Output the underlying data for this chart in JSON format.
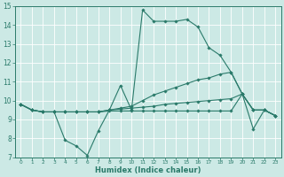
{
  "xlabel": "Humidex (Indice chaleur)",
  "xlim": [
    -0.5,
    23.5
  ],
  "ylim": [
    7,
    15
  ],
  "yticks": [
    7,
    8,
    9,
    10,
    11,
    12,
    13,
    14,
    15
  ],
  "xticks": [
    0,
    1,
    2,
    3,
    4,
    5,
    6,
    7,
    8,
    9,
    10,
    11,
    12,
    13,
    14,
    15,
    16,
    17,
    18,
    19,
    20,
    21,
    22,
    23
  ],
  "bg_color": "#cce9e5",
  "line_color": "#2a7a6a",
  "grid_color": "#ffffff",
  "figsize": [
    3.2,
    2.0
  ],
  "dpi": 100,
  "lines": [
    {
      "x": [
        0,
        1,
        2,
        3,
        4,
        5,
        6,
        7,
        8,
        9,
        10,
        11,
        12,
        13,
        14,
        15,
        16,
        17,
        18,
        19,
        20,
        21,
        22,
        23
      ],
      "y": [
        9.8,
        9.5,
        9.4,
        9.4,
        7.9,
        7.6,
        7.1,
        8.4,
        9.5,
        10.8,
        9.5,
        14.8,
        14.2,
        14.2,
        14.2,
        14.3,
        13.9,
        12.8,
        12.4,
        11.5,
        10.35,
        8.5,
        9.5,
        9.2
      ]
    },
    {
      "x": [
        0,
        1,
        2,
        3,
        4,
        5,
        6,
        7,
        8,
        9,
        10,
        11,
        12,
        13,
        14,
        15,
        16,
        17,
        18,
        19,
        20,
        21,
        22,
        23
      ],
      "y": [
        9.8,
        9.5,
        9.4,
        9.4,
        9.4,
        9.4,
        9.4,
        9.4,
        9.5,
        9.6,
        9.7,
        10.0,
        10.3,
        10.5,
        10.7,
        10.9,
        11.1,
        11.2,
        11.4,
        11.5,
        10.35,
        9.5,
        9.5,
        9.2
      ]
    },
    {
      "x": [
        0,
        1,
        2,
        3,
        4,
        5,
        6,
        7,
        8,
        9,
        10,
        11,
        12,
        13,
        14,
        15,
        16,
        17,
        18,
        19,
        20,
        21,
        22,
        23
      ],
      "y": [
        9.8,
        9.5,
        9.4,
        9.4,
        9.4,
        9.4,
        9.4,
        9.4,
        9.5,
        9.55,
        9.6,
        9.65,
        9.7,
        9.8,
        9.85,
        9.9,
        9.95,
        10.0,
        10.05,
        10.1,
        10.35,
        9.5,
        9.5,
        9.2
      ]
    },
    {
      "x": [
        0,
        1,
        2,
        3,
        4,
        5,
        6,
        7,
        8,
        9,
        10,
        11,
        12,
        13,
        14,
        15,
        16,
        17,
        18,
        19,
        20,
        21,
        22,
        23
      ],
      "y": [
        9.8,
        9.5,
        9.4,
        9.4,
        9.4,
        9.4,
        9.4,
        9.4,
        9.45,
        9.45,
        9.45,
        9.45,
        9.45,
        9.45,
        9.45,
        9.45,
        9.45,
        9.45,
        9.45,
        9.45,
        10.35,
        9.5,
        9.5,
        9.2
      ]
    }
  ]
}
